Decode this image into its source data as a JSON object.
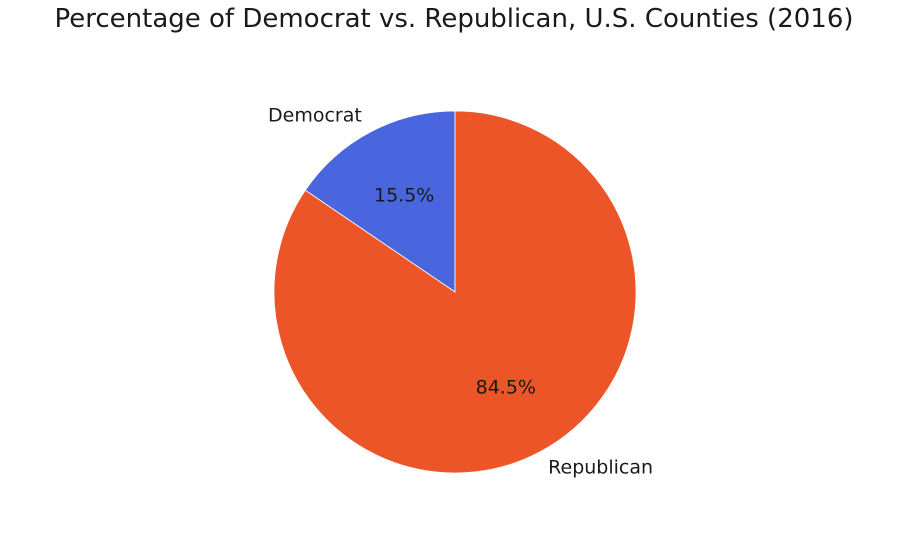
{
  "chart_data": {
    "type": "pie",
    "title": "Percentage of Democrat vs. Republican, U.S. Counties (2016)",
    "slices": [
      {
        "label": "Democrat",
        "value": 15.5,
        "pct_label": "15.5%",
        "color": "#4a66de"
      },
      {
        "label": "Republican",
        "value": 84.5,
        "pct_label": "84.5%",
        "color": "#eb5528"
      }
    ],
    "start_angle": 90,
    "direction": "counterclockwise"
  }
}
